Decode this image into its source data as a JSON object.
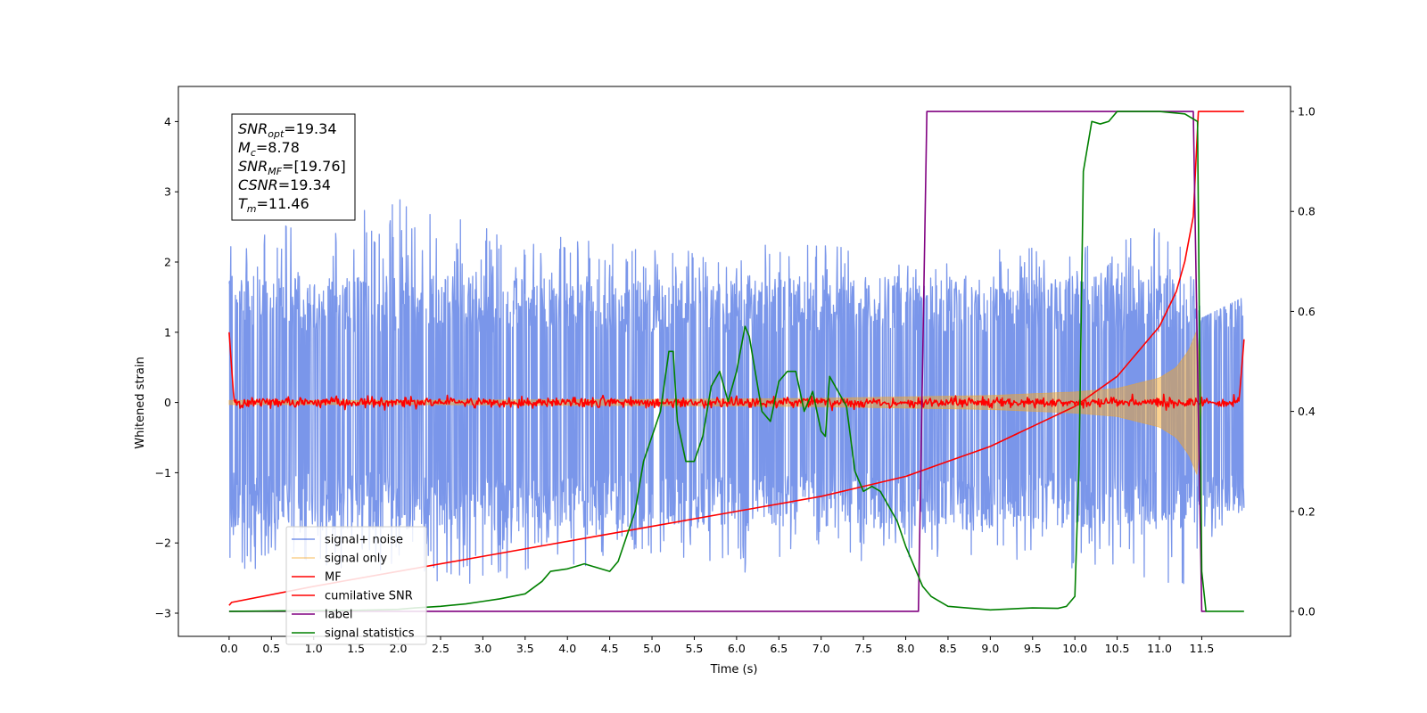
{
  "chart_data": {
    "type": "line",
    "title": "",
    "xlabel": "Time (s)",
    "ylabel": "Whitened strain",
    "y2label": "",
    "xlim": [
      -0.6,
      12.55
    ],
    "ylim": [
      -3.33,
      4.5
    ],
    "y2lim": [
      -0.05,
      1.05
    ],
    "xticks": [
      0.0,
      0.5,
      1.0,
      1.5,
      2.0,
      2.5,
      3.0,
      3.5,
      4.0,
      4.5,
      5.0,
      5.5,
      6.0,
      6.5,
      7.0,
      7.5,
      8.0,
      8.5,
      9.0,
      9.5,
      10.0,
      10.5,
      11.0,
      11.5
    ],
    "xtick_labels": [
      "0.0",
      "0.5",
      "1.0",
      "1.5",
      "2.0",
      "2.5",
      "3.0",
      "3.5",
      "4.0",
      "4.5",
      "5.0",
      "5.5",
      "6.0",
      "6.5",
      "7.0",
      "7.5",
      "8.0",
      "8.5",
      "9.0",
      "9.5",
      "10.0",
      "10.5",
      "11.0",
      "11.5"
    ],
    "yticks": [
      -3,
      -2,
      -1,
      0,
      1,
      2,
      3,
      4
    ],
    "ytick_labels": [
      "−3",
      "−2",
      "−1",
      "0",
      "1",
      "2",
      "3",
      "4"
    ],
    "y2ticks": [
      0.0,
      0.2,
      0.4,
      0.6,
      0.8,
      1.0
    ],
    "y2tick_labels": [
      "0.0",
      "0.2",
      "0.4",
      "0.6",
      "0.8",
      "1.0"
    ],
    "grid": false,
    "legend_position": "lower-left",
    "annotation": {
      "lines": [
        {
          "var": "SNR",
          "sub": "opt",
          "value": "=19.34"
        },
        {
          "var": "M",
          "sub": "c",
          "value": "=8.78"
        },
        {
          "var": "SNR",
          "sub": "MF",
          "value": "=[19.76]"
        },
        {
          "var": "CSNR",
          "sub": "",
          "value": "=19.34"
        },
        {
          "var": "T",
          "sub": "m",
          "value": "=11.46"
        }
      ]
    },
    "series": [
      {
        "name": "signal+ noise",
        "axis": "left",
        "color": "#4169e1",
        "opacity": 0.7,
        "kind": "noise",
        "t_start": 0.0,
        "t_end": 12.0,
        "typical_abs_min": 1.0,
        "typical_abs_max": 1.8,
        "envelope": {
          "t": [
            0.0,
            1.0,
            2.0,
            3.0,
            4.0,
            5.0,
            6.0,
            7.0,
            8.0,
            9.0,
            10.0,
            11.0,
            11.3,
            11.5,
            12.0
          ],
          "upper": [
            2.4,
            2.6,
            2.9,
            2.5,
            2.4,
            2.2,
            2.2,
            2.4,
            2.0,
            2.2,
            2.2,
            2.5,
            2.6,
            1.2,
            1.5
          ],
          "lower": [
            -2.6,
            -2.4,
            -2.5,
            -2.6,
            -2.4,
            -2.2,
            -2.5,
            -2.3,
            -2.2,
            -2.2,
            -2.4,
            -2.6,
            -2.8,
            -2.2,
            -1.5
          ]
        }
      },
      {
        "name": "signal only",
        "axis": "left",
        "color": "#f5a623",
        "opacity": 0.5,
        "kind": "chirp-envelope",
        "envelope": {
          "t": [
            0.0,
            2.0,
            4.0,
            6.0,
            7.0,
            8.0,
            9.0,
            10.0,
            10.5,
            11.0,
            11.2,
            11.35,
            11.45,
            11.5
          ],
          "amplitude": [
            0.03,
            0.03,
            0.04,
            0.05,
            0.06,
            0.08,
            0.1,
            0.15,
            0.2,
            0.35,
            0.5,
            0.75,
            1.05,
            0.0
          ]
        }
      },
      {
        "name": "MF",
        "axis": "left",
        "color": "#ff0000",
        "kind": "matched-filter",
        "t_start": 0.0,
        "t_end": 12.0,
        "baseline": 0.0,
        "ripple_amplitude": 0.08,
        "edge_peaks": [
          {
            "t": 0.0,
            "y": 1.0
          },
          {
            "t": 12.0,
            "y": 0.9
          }
        ]
      },
      {
        "name": "cumilative SNR",
        "axis": "right",
        "color": "#ff0000",
        "x": [
          0.0,
          0.03,
          1.0,
          2.0,
          3.0,
          4.0,
          5.0,
          6.0,
          7.0,
          7.5,
          8.0,
          8.5,
          9.0,
          9.5,
          10.0,
          10.5,
          11.0,
          11.2,
          11.3,
          11.4,
          11.46,
          12.0
        ],
        "y": [
          0.012,
          0.018,
          0.05,
          0.08,
          0.11,
          0.14,
          0.17,
          0.2,
          0.23,
          0.25,
          0.27,
          0.3,
          0.33,
          0.37,
          0.41,
          0.47,
          0.57,
          0.64,
          0.7,
          0.79,
          1.0,
          1.0
        ]
      },
      {
        "name": "label",
        "axis": "right",
        "color": "#800080",
        "x": [
          0.0,
          8.15,
          8.25,
          11.4,
          11.5,
          11.55
        ],
        "y": [
          0.0,
          0.0,
          1.0,
          1.0,
          0.0,
          0.0
        ]
      },
      {
        "name": "signal statistics",
        "axis": "right",
        "color": "#008000",
        "x": [
          0.0,
          1.5,
          2.0,
          2.2,
          2.5,
          2.8,
          3.0,
          3.2,
          3.5,
          3.7,
          3.8,
          4.0,
          4.1,
          4.2,
          4.3,
          4.5,
          4.6,
          4.8,
          4.9,
          5.0,
          5.1,
          5.2,
          5.25,
          5.3,
          5.4,
          5.5,
          5.6,
          5.7,
          5.8,
          5.9,
          6.0,
          6.1,
          6.15,
          6.2,
          6.3,
          6.4,
          6.5,
          6.6,
          6.7,
          6.8,
          6.9,
          7.0,
          7.05,
          7.1,
          7.2,
          7.3,
          7.4,
          7.5,
          7.6,
          7.7,
          7.8,
          7.9,
          8.0,
          8.1,
          8.2,
          8.3,
          8.5,
          9.0,
          9.5,
          9.8,
          9.9,
          10.0,
          10.05,
          10.1,
          10.2,
          10.3,
          10.4,
          10.5,
          11.0,
          11.3,
          11.45,
          11.5,
          11.55,
          12.0
        ],
        "y": [
          0.0,
          0.002,
          0.004,
          0.007,
          0.01,
          0.015,
          0.02,
          0.025,
          0.035,
          0.06,
          0.08,
          0.085,
          0.09,
          0.095,
          0.09,
          0.08,
          0.1,
          0.2,
          0.3,
          0.35,
          0.4,
          0.52,
          0.52,
          0.38,
          0.3,
          0.3,
          0.35,
          0.45,
          0.48,
          0.42,
          0.48,
          0.57,
          0.55,
          0.5,
          0.4,
          0.38,
          0.46,
          0.48,
          0.48,
          0.4,
          0.44,
          0.36,
          0.35,
          0.47,
          0.44,
          0.41,
          0.28,
          0.24,
          0.25,
          0.24,
          0.21,
          0.18,
          0.13,
          0.09,
          0.05,
          0.03,
          0.01,
          0.003,
          0.007,
          0.006,
          0.01,
          0.03,
          0.3,
          0.88,
          0.98,
          0.975,
          0.98,
          1.0,
          1.0,
          0.995,
          0.98,
          0.08,
          0.0,
          0.0
        ]
      }
    ]
  }
}
